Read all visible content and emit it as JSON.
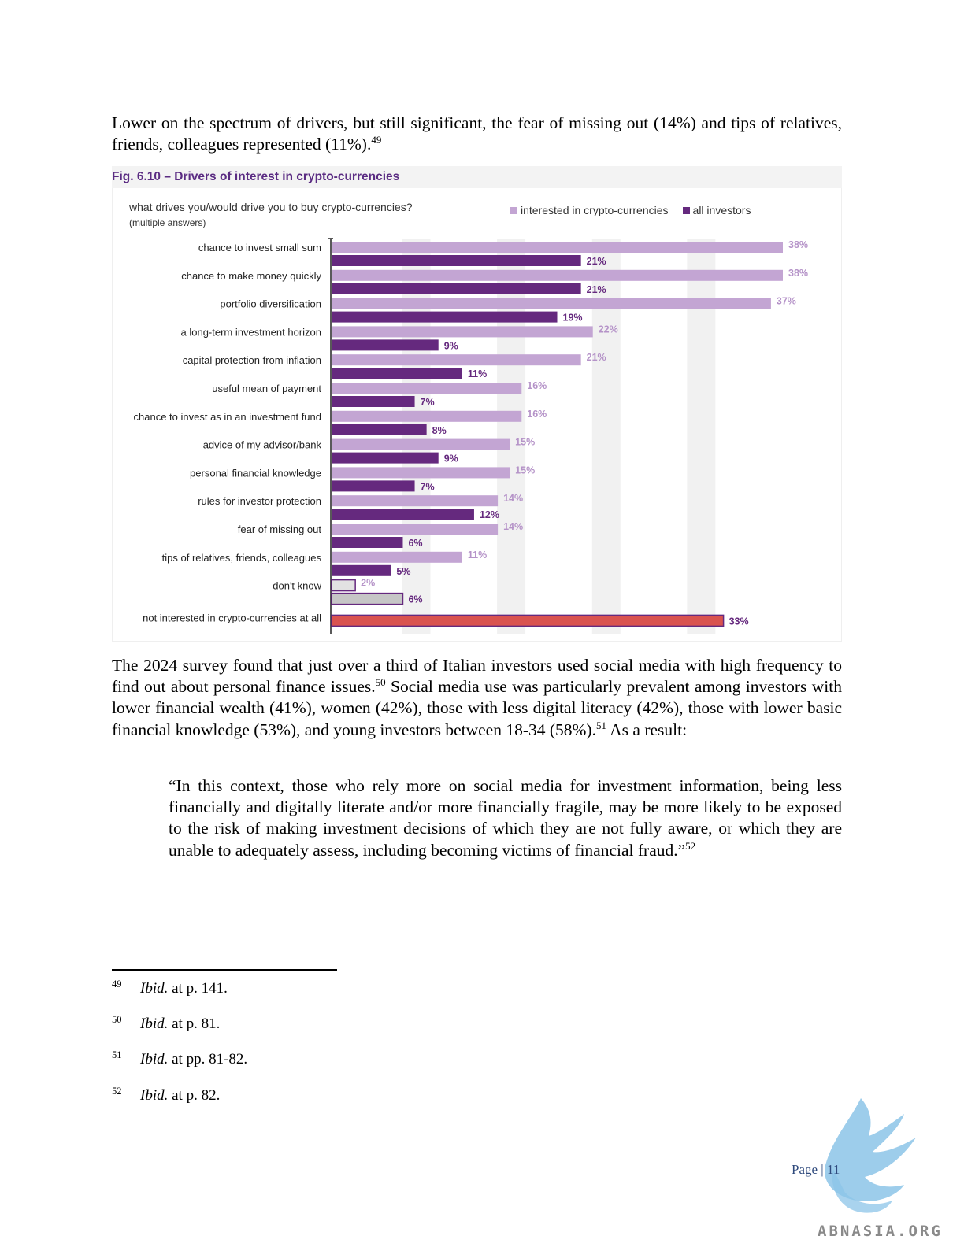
{
  "paragraph1": {
    "text": "Lower on the spectrum of drivers, but still significant, the fear of missing out (14%) and tips of relatives, friends, colleagues represented (11%).",
    "note": "49"
  },
  "figure": {
    "title": "Fig. 6.10 – Drivers of interest in crypto-currencies",
    "question": "what drives you/would drive you to buy crypto-currencies?",
    "question_note": "(multiple answers)"
  },
  "chart_data": {
    "type": "bar",
    "orientation": "horizontal",
    "categories": [
      "chance to invest small sum",
      "chance to make money quickly",
      "portfolio diversification",
      "a long-term investment horizon",
      "capital protection from inflation",
      "useful mean of payment",
      "chance to invest as in an investment fund",
      "advice of my advisor/bank",
      "personal financial knowledge",
      "rules for investor protection",
      "fear of missing out",
      "tips of relatives, friends, colleagues",
      "don't know",
      "not interested in crypto-currencies at all"
    ],
    "series": [
      {
        "name": "interested in crypto-currencies",
        "color": "#c3a5d3",
        "values": [
          38,
          38,
          37,
          22,
          21,
          16,
          16,
          15,
          15,
          14,
          14,
          11,
          2,
          null
        ]
      },
      {
        "name": "all investors",
        "color": "#65297e",
        "values": [
          21,
          21,
          19,
          9,
          11,
          7,
          8,
          9,
          7,
          12,
          6,
          5,
          6,
          33
        ]
      }
    ],
    "value_labels": {
      "interested": [
        "38%",
        "38%",
        "37%",
        "22%",
        "21%",
        "16%",
        "16%",
        "15%",
        "15%",
        "14%",
        "14%",
        "11%",
        "2%",
        ""
      ],
      "all": [
        "21%",
        "21%",
        "19%",
        "9%",
        "11%",
        "7%",
        "8%",
        "9%",
        "7%",
        "12%",
        "6%",
        "5%",
        "6%",
        "33%"
      ]
    },
    "special_colors": {
      "dont_know": "#c6c6c6",
      "dont_know_border": "#65297e",
      "not_interested": "#d9534f",
      "not_interested_border": "#65297e"
    },
    "xlim": [
      0,
      38
    ],
    "grid": "alternating vertical bands",
    "legend_position": "top-right"
  },
  "paragraph2": {
    "part1": "The 2024 survey found that just over a third of Italian investors used social media with high frequency to find out about personal finance issues.",
    "note1": "50",
    "part2": " Social media use was particularly prevalent among investors with lower financial wealth (41%), women (42%), those with less digital literacy (42%), those with lower basic financial knowledge (53%), and young investors between 18-34 (58%).",
    "note2": "51",
    "part3": " As a result:"
  },
  "quote": {
    "text": "“In this context, those who rely more on social media for investment information, being less financially and digitally literate and/or more financially fragile, may be more likely to be exposed to the risk of making investment decisions of which they are not fully aware, or which they are unable to adequately assess, including becoming victims of financial fraud.”",
    "note": "52"
  },
  "footnotes": [
    {
      "num": "49",
      "ibid": "Ibid.",
      "rest": " at p. 141."
    },
    {
      "num": "50",
      "ibid": "Ibid.",
      "rest": " at p. 81."
    },
    {
      "num": "51",
      "ibid": "Ibid.",
      "rest": " at pp. 81-82."
    },
    {
      "num": "52",
      "ibid": "Ibid.",
      "rest": " at p. 82."
    }
  ],
  "page_number": "Page | 11",
  "watermark": "ABNASIA.ORG"
}
